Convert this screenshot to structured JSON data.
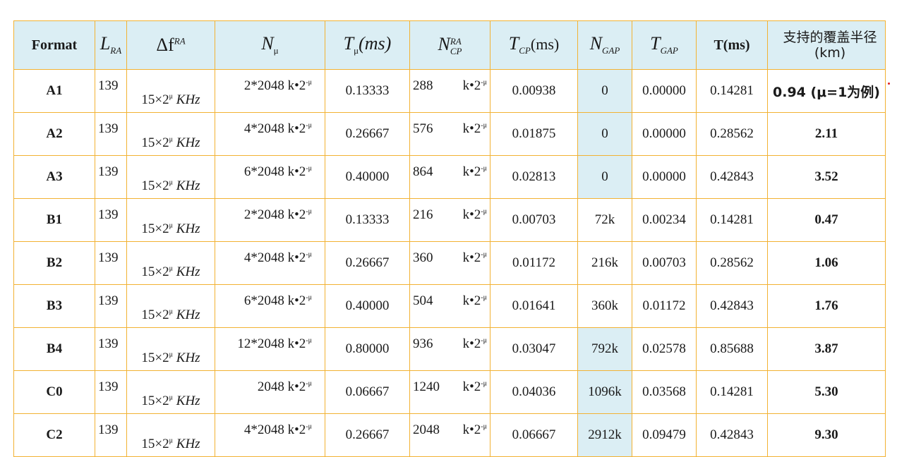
{
  "headers": {
    "format": "Format",
    "lra_main": "L",
    "lra_sub": "RA",
    "df_main": "Δf",
    "df_sup": "RA",
    "nmu_main": "N",
    "nmu_sub": "μ",
    "tmu_main": "T",
    "tmu_sub": "μ",
    "tmu_unit": "(ms)",
    "ncp_main": "N",
    "ncp_sup": "RA",
    "ncp_sub": "CP",
    "tcp_main": "T",
    "tcp_sub": "CP",
    "tcp_unit": "(ms)",
    "ngap_main": "N",
    "ngap_sub": "GAP",
    "tgap_main": "T",
    "tgap_sub": "GAP",
    "t_ms": "T(ms)",
    "coverage": "支持的覆盖半径(km)"
  },
  "df_text": "15×2",
  "df_sup": "μ",
  "df_unit": "KHz",
  "k_unit": "k•2",
  "k_sup": "-μ",
  "rows": [
    {
      "format": "A1",
      "lra": "139",
      "nmu": "2*2048",
      "tmu": "0.13333",
      "ncp": "288",
      "tcp": "0.00938",
      "ngap": "0",
      "tgap": "0.00000",
      "t": "0.14281",
      "cov": "0.94 (μ=1为例)"
    },
    {
      "format": "A2",
      "lra": "139",
      "nmu": "4*2048",
      "tmu": "0.26667",
      "ncp": "576",
      "tcp": "0.01875",
      "ngap": "0",
      "tgap": "0.00000",
      "t": "0.28562",
      "cov": "2.11"
    },
    {
      "format": "A3",
      "lra": "139",
      "nmu": "6*2048",
      "tmu": "0.40000",
      "ncp": "864",
      "tcp": "0.02813",
      "ngap": "0",
      "tgap": "0.00000",
      "t": "0.42843",
      "cov": "3.52"
    },
    {
      "format": "B1",
      "lra": "139",
      "nmu": "2*2048",
      "tmu": "0.13333",
      "ncp": "216",
      "tcp": "0.00703",
      "ngap": "72k",
      "tgap": "0.00234",
      "t": "0.14281",
      "cov": "0.47"
    },
    {
      "format": "B2",
      "lra": "139",
      "nmu": "4*2048",
      "tmu": "0.26667",
      "ncp": "360",
      "tcp": "0.01172",
      "ngap": "216k",
      "tgap": "0.00703",
      "t": "0.28562",
      "cov": "1.06"
    },
    {
      "format": "B3",
      "lra": "139",
      "nmu": "6*2048",
      "tmu": "0.40000",
      "ncp": "504",
      "tcp": "0.01641",
      "ngap": "360k",
      "tgap": "0.01172",
      "t": "0.42843",
      "cov": "1.76"
    },
    {
      "format": "B4",
      "lra": "139",
      "nmu": "12*2048",
      "tmu": "0.80000",
      "ncp": "936",
      "tcp": "0.03047",
      "ngap": "792k",
      "tgap": "0.02578",
      "t": "0.85688",
      "cov": "3.87"
    },
    {
      "format": "C0",
      "lra": "139",
      "nmu": "2048",
      "tmu": "0.06667",
      "ncp": "1240",
      "tcp": "0.04036",
      "ngap": "1096k",
      "tgap": "0.03568",
      "t": "0.14281",
      "cov": "5.30"
    },
    {
      "format": "C2",
      "lra": "139",
      "nmu": "4*2048",
      "tmu": "0.26667",
      "ncp": "2048",
      "tcp": "0.06667",
      "ngap": "2912k",
      "tgap": "0.09479",
      "t": "0.42843",
      "cov": "9.30"
    }
  ],
  "shaded_ngap_rows": [
    0,
    1,
    2,
    6,
    7,
    8
  ],
  "colors": {
    "border": "#f2b233",
    "header_bg": "#dbeef4",
    "coverage_text": "#1f3d8a"
  }
}
